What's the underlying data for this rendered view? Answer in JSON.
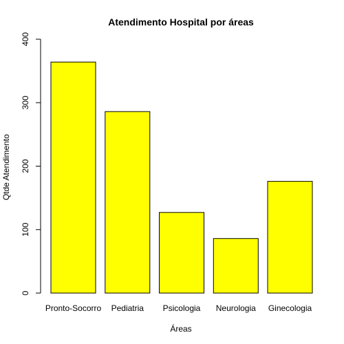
{
  "chart_data": {
    "type": "bar",
    "title": "Atendimento Hospital por áreas",
    "xlabel": "Áreas",
    "ylabel": "Qtde Atendimento",
    "categories": [
      "Pronto-Socorro",
      "Pediatria",
      "Psicologia",
      "Neurologia",
      "Ginecologia"
    ],
    "values": [
      364,
      286,
      127,
      86,
      176
    ],
    "ylim": [
      0,
      400
    ],
    "yticks": [
      "0",
      "100",
      "200",
      "300",
      "400"
    ],
    "grid": false,
    "bar_color": "#ffff00",
    "bar_border_color": "#000000"
  }
}
